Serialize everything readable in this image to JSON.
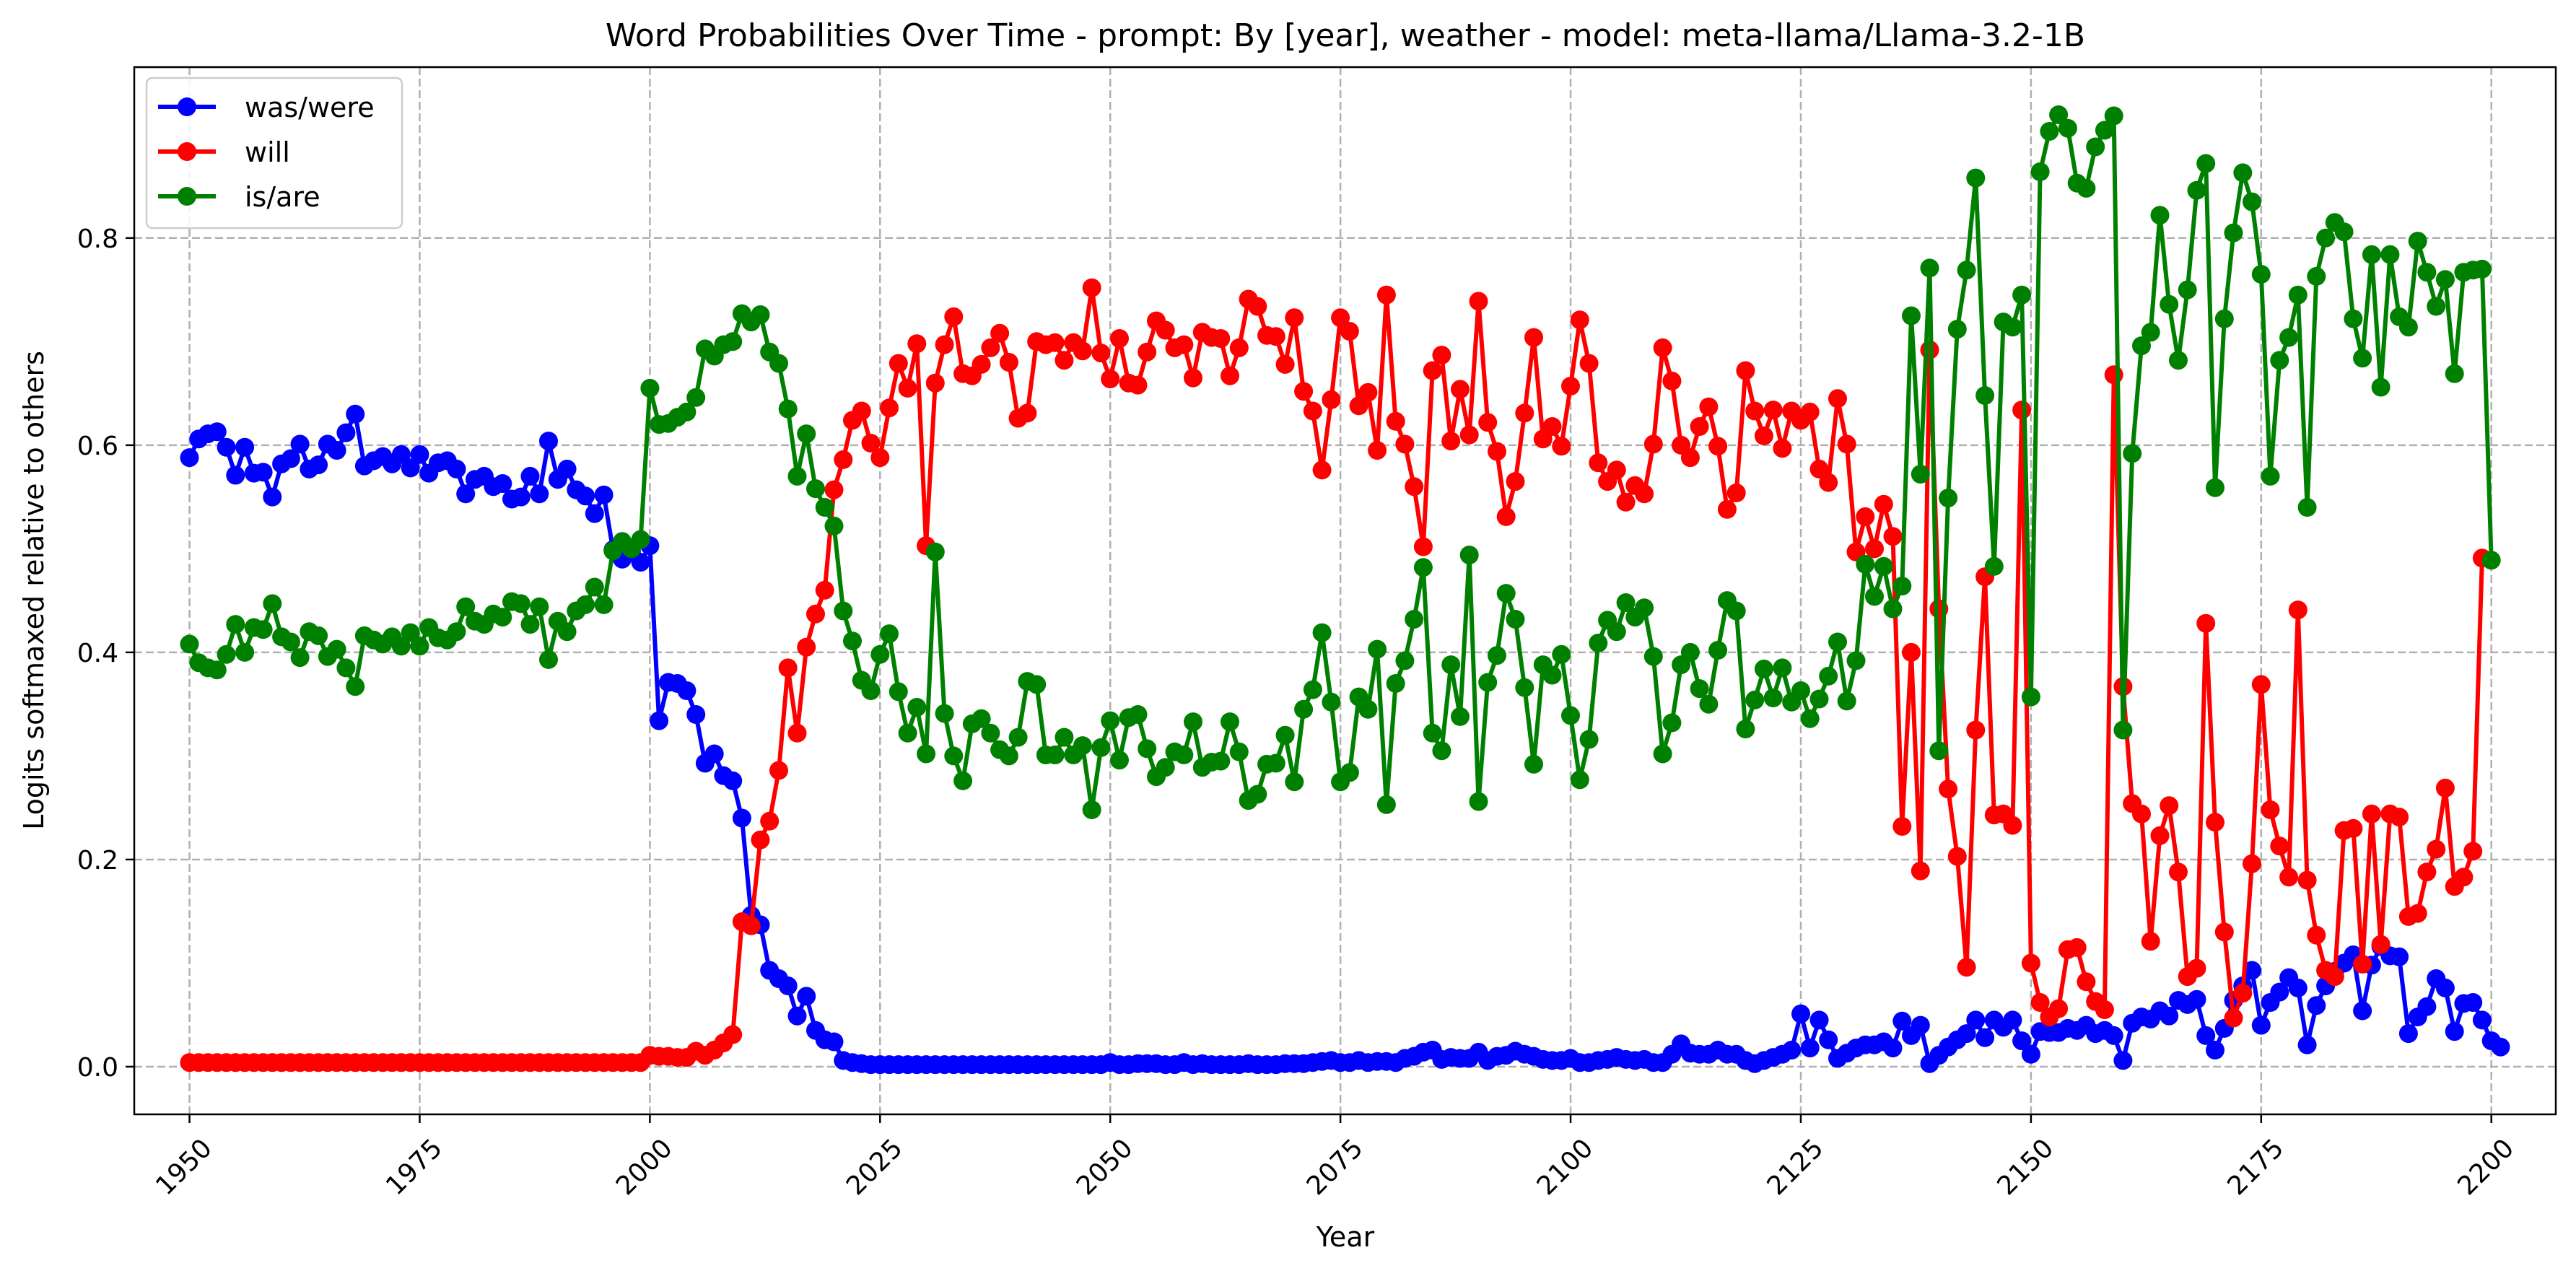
{
  "chart_data": {
    "type": "line",
    "title": "Word Probabilities Over Time - prompt: By [year], weather - model: meta-llama/Llama-3.2-1B",
    "xlabel": "Year",
    "ylabel": "Logits softmaxed relative to others",
    "xlim": [
      1944,
      2207
    ],
    "ylim": [
      -0.046,
      0.965
    ],
    "xticks": [
      1950,
      1975,
      2000,
      2025,
      2050,
      2075,
      2100,
      2125,
      2150,
      2175,
      2200
    ],
    "yticks": [
      0.0,
      0.2,
      0.4,
      0.6,
      0.8
    ],
    "grid": true,
    "legend_position": "upper left",
    "x_start": 1950,
    "x_step": 1,
    "series": [
      {
        "name": "was/were",
        "color": "#0000ff",
        "values": [
          0.588,
          0.606,
          0.611,
          0.613,
          0.598,
          0.571,
          0.598,
          0.573,
          0.574,
          0.55,
          0.582,
          0.587,
          0.601,
          0.577,
          0.581,
          0.601,
          0.595,
          0.612,
          0.63,
          0.58,
          0.585,
          0.589,
          0.582,
          0.591,
          0.578,
          0.591,
          0.573,
          0.583,
          0.585,
          0.577,
          0.553,
          0.567,
          0.57,
          0.56,
          0.563,
          0.548,
          0.55,
          0.57,
          0.553,
          0.604,
          0.567,
          0.577,
          0.557,
          0.551,
          0.534,
          0.552,
          0.499,
          0.49,
          0.497,
          0.487,
          0.503,
          0.334,
          0.371,
          0.37,
          0.363,
          0.34,
          0.293,
          0.302,
          0.281,
          0.276,
          0.24,
          0.146,
          0.137,
          0.093,
          0.085,
          0.078,
          0.049,
          0.068,
          0.035,
          0.026,
          0.024,
          0.006,
          0.004,
          0.003,
          0.002,
          0.002,
          0.002,
          0.002,
          0.002,
          0.002,
          0.002,
          0.002,
          0.002,
          0.002,
          0.002,
          0.002,
          0.002,
          0.002,
          0.002,
          0.002,
          0.002,
          0.002,
          0.002,
          0.002,
          0.002,
          0.002,
          0.002,
          0.002,
          0.002,
          0.002,
          0.004,
          0.002,
          0.002,
          0.003,
          0.003,
          0.003,
          0.002,
          0.002,
          0.004,
          0.002,
          0.003,
          0.002,
          0.002,
          0.002,
          0.002,
          0.003,
          0.002,
          0.002,
          0.002,
          0.003,
          0.003,
          0.003,
          0.004,
          0.005,
          0.006,
          0.004,
          0.004,
          0.006,
          0.004,
          0.005,
          0.005,
          0.004,
          0.008,
          0.01,
          0.014,
          0.016,
          0.007,
          0.009,
          0.008,
          0.008,
          0.014,
          0.006,
          0.01,
          0.011,
          0.015,
          0.012,
          0.01,
          0.007,
          0.006,
          0.006,
          0.008,
          0.004,
          0.004,
          0.006,
          0.007,
          0.009,
          0.007,
          0.006,
          0.007,
          0.004,
          0.004,
          0.012,
          0.022,
          0.013,
          0.012,
          0.012,
          0.016,
          0.012,
          0.012,
          0.006,
          0.003,
          0.006,
          0.009,
          0.012,
          0.016,
          0.051,
          0.018,
          0.045,
          0.026,
          0.008,
          0.013,
          0.018,
          0.021,
          0.021,
          0.024,
          0.018,
          0.044,
          0.03,
          0.04,
          0.003,
          0.011,
          0.019,
          0.026,
          0.032,
          0.045,
          0.028,
          0.045,
          0.038,
          0.045,
          0.025,
          0.012,
          0.034,
          0.033,
          0.033,
          0.037,
          0.035,
          0.04,
          0.032,
          0.035,
          0.03,
          0.006,
          0.042,
          0.048,
          0.046,
          0.054,
          0.049,
          0.064,
          0.06,
          0.065,
          0.03,
          0.016,
          0.037,
          0.064,
          0.078,
          0.093,
          0.04,
          0.062,
          0.072,
          0.086,
          0.076,
          0.021,
          0.059,
          0.078,
          0.092,
          0.1,
          0.108,
          0.054,
          0.098,
          0.116,
          0.107,
          0.106,
          0.032,
          0.048,
          0.058,
          0.085,
          0.076,
          0.034,
          0.061,
          0.062,
          0.045,
          0.025,
          0.019
        ]
      },
      {
        "name": "will",
        "color": "#ff0000",
        "values": [
          0.004,
          0.004,
          0.004,
          0.004,
          0.004,
          0.004,
          0.004,
          0.004,
          0.004,
          0.004,
          0.004,
          0.004,
          0.004,
          0.004,
          0.004,
          0.004,
          0.004,
          0.004,
          0.004,
          0.004,
          0.004,
          0.004,
          0.004,
          0.004,
          0.004,
          0.004,
          0.004,
          0.004,
          0.004,
          0.004,
          0.004,
          0.004,
          0.004,
          0.004,
          0.004,
          0.004,
          0.004,
          0.004,
          0.004,
          0.004,
          0.004,
          0.004,
          0.004,
          0.004,
          0.004,
          0.004,
          0.004,
          0.004,
          0.004,
          0.004,
          0.011,
          0.01,
          0.01,
          0.009,
          0.009,
          0.015,
          0.011,
          0.016,
          0.023,
          0.031,
          0.14,
          0.136,
          0.219,
          0.237,
          0.286,
          0.385,
          0.322,
          0.405,
          0.437,
          0.46,
          0.557,
          0.586,
          0.624,
          0.633,
          0.602,
          0.588,
          0.636,
          0.679,
          0.655,
          0.698,
          0.503,
          0.66,
          0.697,
          0.724,
          0.669,
          0.667,
          0.678,
          0.694,
          0.708,
          0.68,
          0.626,
          0.631,
          0.7,
          0.697,
          0.699,
          0.682,
          0.699,
          0.691,
          0.752,
          0.689,
          0.664,
          0.703,
          0.66,
          0.658,
          0.69,
          0.72,
          0.711,
          0.694,
          0.697,
          0.665,
          0.709,
          0.704,
          0.703,
          0.667,
          0.694,
          0.741,
          0.734,
          0.706,
          0.705,
          0.678,
          0.723,
          0.652,
          0.633,
          0.576,
          0.644,
          0.723,
          0.71,
          0.638,
          0.651,
          0.595,
          0.745,
          0.623,
          0.601,
          0.56,
          0.502,
          0.672,
          0.687,
          0.604,
          0.654,
          0.61,
          0.739,
          0.622,
          0.594,
          0.531,
          0.565,
          0.631,
          0.704,
          0.606,
          0.618,
          0.599,
          0.657,
          0.721,
          0.679,
          0.583,
          0.565,
          0.576,
          0.545,
          0.561,
          0.553,
          0.601,
          0.694,
          0.662,
          0.6,
          0.588,
          0.618,
          0.637,
          0.599,
          0.538,
          0.554,
          0.672,
          0.633,
          0.609,
          0.634,
          0.597,
          0.633,
          0.624,
          0.632,
          0.577,
          0.564,
          0.645,
          0.601,
          0.497,
          0.531,
          0.5,
          0.543,
          0.512,
          0.232,
          0.4,
          0.189,
          0.692,
          0.442,
          0.268,
          0.203,
          0.096,
          0.325,
          0.473,
          0.243,
          0.244,
          0.233,
          0.634,
          0.1,
          0.062,
          0.048,
          0.056,
          0.113,
          0.115,
          0.082,
          0.063,
          0.055,
          0.668,
          0.367,
          0.254,
          0.244,
          0.121,
          0.223,
          0.252,
          0.188,
          0.087,
          0.095,
          0.428,
          0.236,
          0.13,
          0.047,
          0.071,
          0.196,
          0.369,
          0.248,
          0.213,
          0.183,
          0.441,
          0.18,
          0.127,
          0.093,
          0.087,
          0.228,
          0.23,
          0.099,
          0.244,
          0.118,
          0.244,
          0.241,
          0.145,
          0.148,
          0.188,
          0.21,
          0.269,
          0.174,
          0.183,
          0.208,
          0.491
        ]
      },
      {
        "name": "is/are",
        "color": "#008000",
        "values": [
          0.408,
          0.39,
          0.385,
          0.383,
          0.398,
          0.427,
          0.4,
          0.424,
          0.422,
          0.447,
          0.415,
          0.41,
          0.395,
          0.42,
          0.416,
          0.396,
          0.403,
          0.385,
          0.367,
          0.416,
          0.412,
          0.408,
          0.415,
          0.406,
          0.419,
          0.406,
          0.424,
          0.414,
          0.412,
          0.42,
          0.444,
          0.43,
          0.427,
          0.437,
          0.434,
          0.449,
          0.447,
          0.427,
          0.444,
          0.393,
          0.43,
          0.42,
          0.44,
          0.446,
          0.463,
          0.446,
          0.498,
          0.507,
          0.5,
          0.509,
          0.655,
          0.62,
          0.621,
          0.627,
          0.632,
          0.646,
          0.693,
          0.686,
          0.697,
          0.7,
          0.727,
          0.719,
          0.726,
          0.69,
          0.679,
          0.635,
          0.57,
          0.611,
          0.558,
          0.54,
          0.522,
          0.44,
          0.411,
          0.373,
          0.363,
          0.398,
          0.418,
          0.362,
          0.322,
          0.347,
          0.302,
          0.497,
          0.341,
          0.3,
          0.276,
          0.331,
          0.336,
          0.322,
          0.306,
          0.3,
          0.318,
          0.372,
          0.369,
          0.301,
          0.301,
          0.318,
          0.301,
          0.31,
          0.248,
          0.308,
          0.334,
          0.296,
          0.337,
          0.34,
          0.307,
          0.28,
          0.289,
          0.304,
          0.301,
          0.333,
          0.289,
          0.294,
          0.295,
          0.333,
          0.304,
          0.257,
          0.263,
          0.292,
          0.293,
          0.32,
          0.275,
          0.345,
          0.364,
          0.419,
          0.352,
          0.275,
          0.284,
          0.357,
          0.345,
          0.403,
          0.253,
          0.37,
          0.392,
          0.432,
          0.482,
          0.322,
          0.305,
          0.388,
          0.338,
          0.494,
          0.256,
          0.371,
          0.397,
          0.457,
          0.432,
          0.366,
          0.292,
          0.388,
          0.378,
          0.398,
          0.339,
          0.277,
          0.316,
          0.409,
          0.431,
          0.42,
          0.448,
          0.434,
          0.443,
          0.396,
          0.302,
          0.332,
          0.388,
          0.4,
          0.365,
          0.35,
          0.402,
          0.45,
          0.44,
          0.326,
          0.354,
          0.384,
          0.356,
          0.385,
          0.352,
          0.363,
          0.336,
          0.355,
          0.377,
          0.41,
          0.353,
          0.392,
          0.485,
          0.454,
          0.483,
          0.442,
          0.464,
          0.725,
          0.572,
          0.771,
          0.305,
          0.549,
          0.712,
          0.769,
          0.858,
          0.648,
          0.483,
          0.719,
          0.714,
          0.745,
          0.357,
          0.864,
          0.903,
          0.919,
          0.906,
          0.853,
          0.848,
          0.888,
          0.904,
          0.918,
          0.325,
          0.592,
          0.696,
          0.709,
          0.822,
          0.736,
          0.682,
          0.75,
          0.846,
          0.872,
          0.559,
          0.722,
          0.805,
          0.863,
          0.835,
          0.765,
          0.57,
          0.682,
          0.704,
          0.745,
          0.54,
          0.763,
          0.8,
          0.815,
          0.806,
          0.722,
          0.684,
          0.784,
          0.656,
          0.784,
          0.724,
          0.714,
          0.797,
          0.767,
          0.734,
          0.76,
          0.669,
          0.767,
          0.769,
          0.77,
          0.489
        ]
      }
    ]
  }
}
